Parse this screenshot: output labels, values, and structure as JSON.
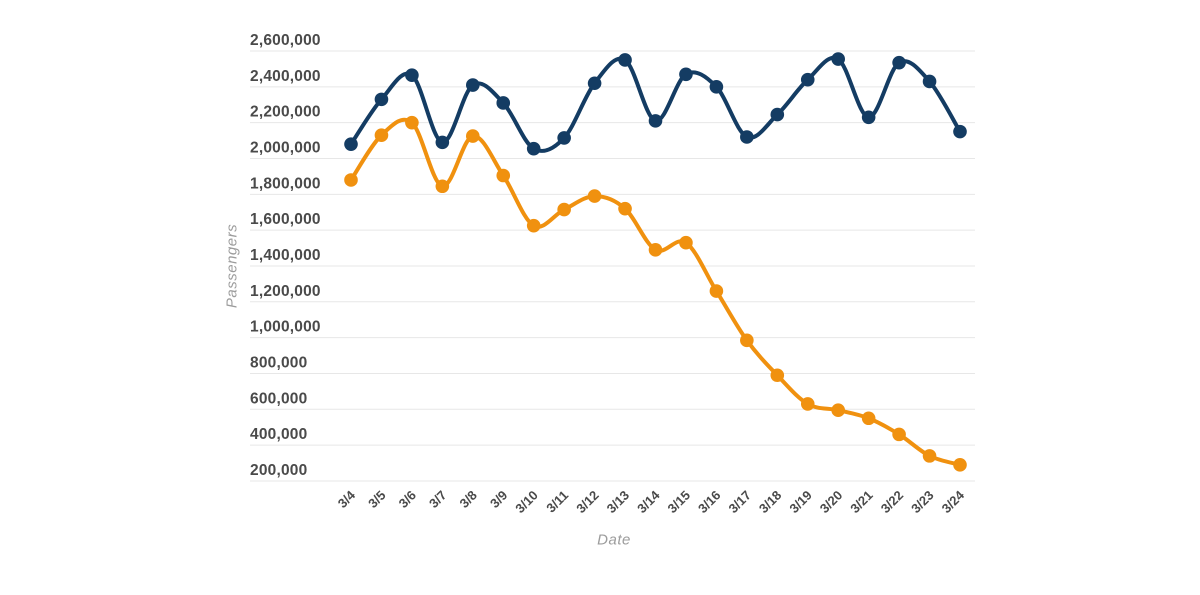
{
  "chart_data": {
    "type": "line",
    "title": "",
    "xlabel": "Date",
    "ylabel": "Passengers",
    "x": [
      "3/4",
      "3/5",
      "3/6",
      "3/7",
      "3/8",
      "3/9",
      "3/10",
      "3/11",
      "3/12",
      "3/13",
      "3/14",
      "3/15",
      "3/16",
      "3/17",
      "3/18",
      "3/19",
      "3/20",
      "3/21",
      "3/22",
      "3/23",
      "3/24"
    ],
    "series": [
      {
        "name": "blue",
        "color": "#143c63",
        "values": [
          2080000,
          2330000,
          2465000,
          2090000,
          2410000,
          2310000,
          2055000,
          2115000,
          2420000,
          2550000,
          2210000,
          2470000,
          2400000,
          2120000,
          2245000,
          2440000,
          2555000,
          2230000,
          2535000,
          2430000,
          2150000
        ]
      },
      {
        "name": "orange",
        "color": "#f0910f",
        "values": [
          1880000,
          2130000,
          2200000,
          1845000,
          2125000,
          1905000,
          1625000,
          1715000,
          1790000,
          1720000,
          1490000,
          1530000,
          1260000,
          985000,
          790000,
          630000,
          595000,
          550000,
          460000,
          340000,
          290000
        ]
      }
    ],
    "ylim": [
      200000,
      2600000
    ],
    "ytick_step": 200000,
    "grid": true,
    "legend_position": "none",
    "smooth": true,
    "marker": "circle"
  },
  "styles": {
    "background": "#ffffff",
    "grid_color": "#e7e7e7",
    "tick_label_color": "#4a4a4a",
    "axis_title_color": "#9c9c9c"
  }
}
